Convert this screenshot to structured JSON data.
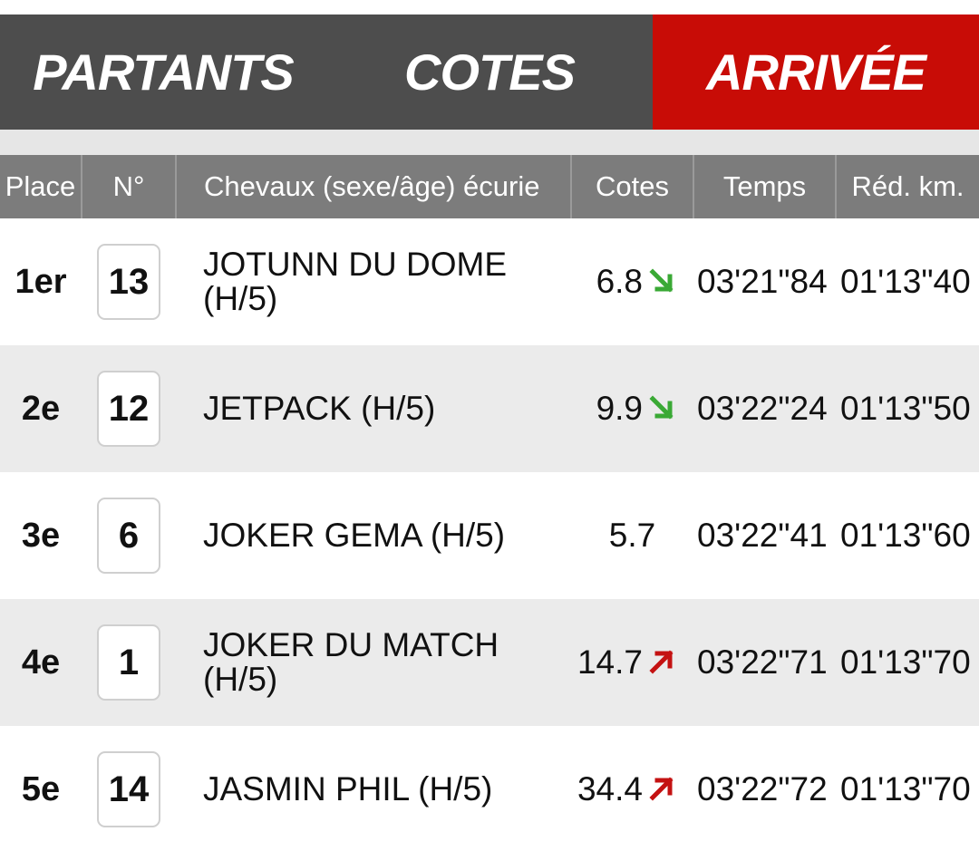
{
  "tabs": [
    {
      "label": "PARTANTS",
      "active": false
    },
    {
      "label": "COTES",
      "active": false
    },
    {
      "label": "ARRIVÉE",
      "active": true
    }
  ],
  "colors": {
    "tab_bg": "#4d4d4d",
    "tab_active": "#c80c06",
    "header_bg": "#7c7c7c",
    "trend_down": "#3aa935",
    "trend_up": "#c41212"
  },
  "table": {
    "headers": [
      "Place",
      "N°",
      "Chevaux (sexe/âge) écurie",
      "Cotes",
      "Temps",
      "Réd. km."
    ],
    "rows": [
      {
        "place": "1er",
        "number": "13",
        "horse": "JOTUNN DU DOME (H/5)",
        "cote": "6.8",
        "trend": "down",
        "trend_icon": "arrow-down-right-icon",
        "time": "03'21\"84",
        "red_km": "01'13\"40"
      },
      {
        "place": "2e",
        "number": "12",
        "horse": "JETPACK (H/5)",
        "cote": "9.9",
        "trend": "down",
        "trend_icon": "arrow-down-right-icon",
        "time": "03'22\"24",
        "red_km": "01'13\"50"
      },
      {
        "place": "3e",
        "number": "6",
        "horse": "JOKER GEMA (H/5)",
        "cote": "5.7",
        "trend": "none",
        "trend_icon": "",
        "time": "03'22\"41",
        "red_km": "01'13\"60"
      },
      {
        "place": "4e",
        "number": "1",
        "horse": "JOKER DU MATCH (H/5)",
        "cote": "14.7",
        "trend": "up",
        "trend_icon": "arrow-up-right-icon",
        "time": "03'22\"71",
        "red_km": "01'13\"70"
      },
      {
        "place": "5e",
        "number": "14",
        "horse": "JASMIN PHIL (H/5)",
        "cote": "34.4",
        "trend": "up",
        "trend_icon": "arrow-up-right-icon",
        "time": "03'22\"72",
        "red_km": "01'13\"70"
      }
    ]
  }
}
